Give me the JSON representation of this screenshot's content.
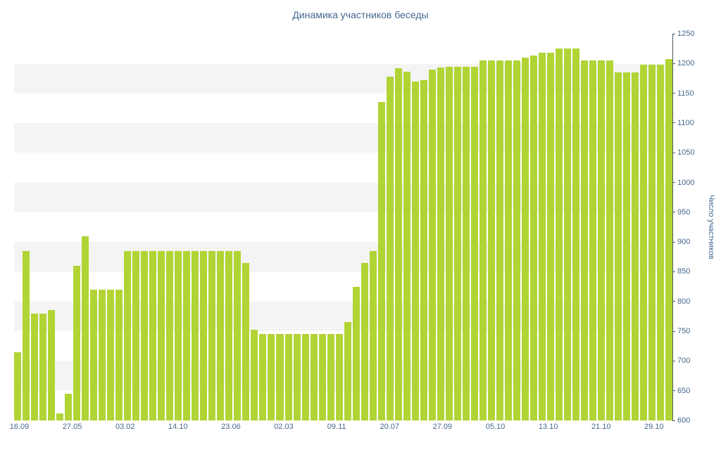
{
  "title": "Динамика участников беседы",
  "chart_data": {
    "type": "bar",
    "title": "Динамика участников беседы",
    "xlabel": "",
    "ylabel": "Число участников",
    "ylim": [
      600,
      1250
    ],
    "y_tick_step": 50,
    "grid": "horizontal-bands",
    "legend": "none",
    "x_tick_labels": [
      "16.09",
      "27.05",
      "03.02",
      "14.10",
      "23.06",
      "02.03",
      "09.11",
      "20.07",
      "27.09",
      "05.10",
      "13.10",
      "21.10",
      "29.10"
    ],
    "values": [
      715,
      885,
      780,
      780,
      785,
      612,
      645,
      860,
      910,
      820,
      820,
      820,
      820,
      885,
      885,
      885,
      885,
      885,
      885,
      885,
      885,
      885,
      885,
      885,
      885,
      885,
      885,
      865,
      752,
      745,
      745,
      745,
      745,
      745,
      745,
      745,
      745,
      745,
      745,
      765,
      825,
      865,
      885,
      1135,
      1178,
      1192,
      1186,
      1170,
      1172,
      1190,
      1193,
      1195,
      1195,
      1195,
      1195,
      1205,
      1205,
      1205,
      1205,
      1205,
      1210,
      1213,
      1218,
      1218,
      1225,
      1225,
      1225,
      1205,
      1205,
      1205,
      1205,
      1185,
      1185,
      1185,
      1198,
      1198,
      1198,
      1207
    ],
    "colors": {
      "bar": "#b1d435",
      "text": "#45688e",
      "axis": "#4d5966",
      "band_light": "#ffffff",
      "band_shade": "#f4f4f4"
    }
  }
}
